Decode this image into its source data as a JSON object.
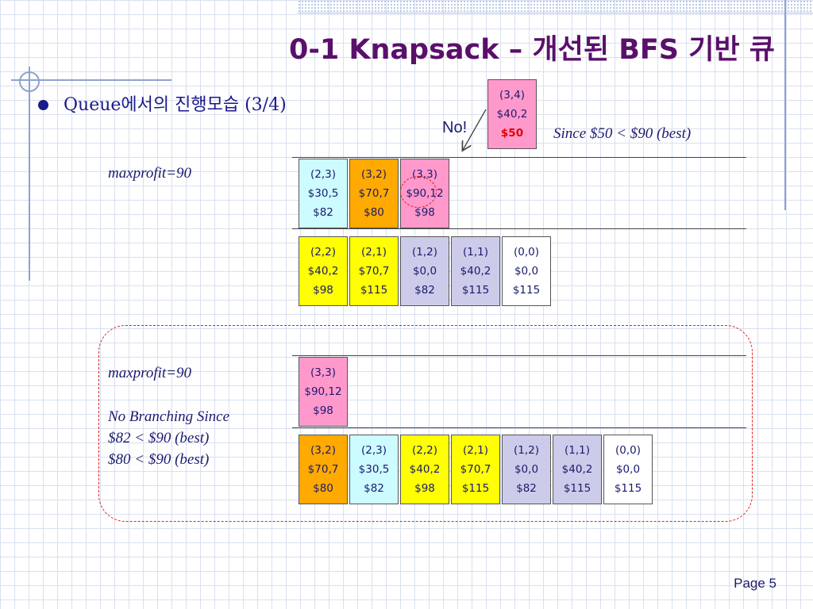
{
  "slide": {
    "title": "0-1 Knapsack – 개선된 BFS 기반 큐",
    "bullet": "Queue에서의 진행모습 (3/4)",
    "page": "Page 5"
  },
  "upper": {
    "maxprofit": "maxprofit=90",
    "rejected_node": {
      "label": "(3,4)",
      "wp": "$40,2",
      "bound": "$50"
    },
    "no_label": "No!",
    "since_note": "Since $50 < $90 (best)",
    "queue_row1": [
      {
        "label": "(2,3)",
        "wp": "$30,5",
        "bound": "$82",
        "color": "#ccfcff"
      },
      {
        "label": "(3,2)",
        "wp": "$70,7",
        "bound": "$80",
        "color": "#ffaa00"
      },
      {
        "label": "(3,3)",
        "wp": "$90,12",
        "bound": "$98",
        "color": "#ff99cc"
      }
    ],
    "queue_row2": [
      {
        "label": "(2,2)",
        "wp": "$40,2",
        "bound": "$98",
        "color": "#ffff00"
      },
      {
        "label": "(2,1)",
        "wp": "$70,7",
        "bound": "$115",
        "color": "#ffff00"
      },
      {
        "label": "(1,2)",
        "wp": "$0,0",
        "bound": "$82",
        "color": "#ccccea"
      },
      {
        "label": "(1,1)",
        "wp": "$40,2",
        "bound": "$115",
        "color": "#ccccea"
      },
      {
        "label": "(0,0)",
        "wp": "$0,0",
        "bound": "$115",
        "color": "#ffffff"
      }
    ]
  },
  "lower": {
    "maxprofit": "maxprofit=90",
    "no_branching": "No Branching Since",
    "reason1": "$82 < $90 (best)",
    "reason2": "$80 < $90 (best)",
    "queue_row1": [
      {
        "label": "(3,3)",
        "wp": "$90,12",
        "bound": "$98",
        "color": "#ff99cc"
      }
    ],
    "queue_row2": [
      {
        "label": "(3,2)",
        "wp": "$70,7",
        "bound": "$80",
        "color": "#ffaa00"
      },
      {
        "label": "(2,3)",
        "wp": "$30,5",
        "bound": "$82",
        "color": "#ccfcff"
      },
      {
        "label": "(2,2)",
        "wp": "$40,2",
        "bound": "$98",
        "color": "#ffff00"
      },
      {
        "label": "(2,1)",
        "wp": "$70,7",
        "bound": "$115",
        "color": "#ffff00"
      },
      {
        "label": "(1,2)",
        "wp": "$0,0",
        "bound": "$82",
        "color": "#ccccea"
      },
      {
        "label": "(1,1)",
        "wp": "$40,2",
        "bound": "$115",
        "color": "#ccccea"
      },
      {
        "label": "(0,0)",
        "wp": "$0,0",
        "bound": "$115",
        "color": "#ffffff"
      }
    ]
  }
}
